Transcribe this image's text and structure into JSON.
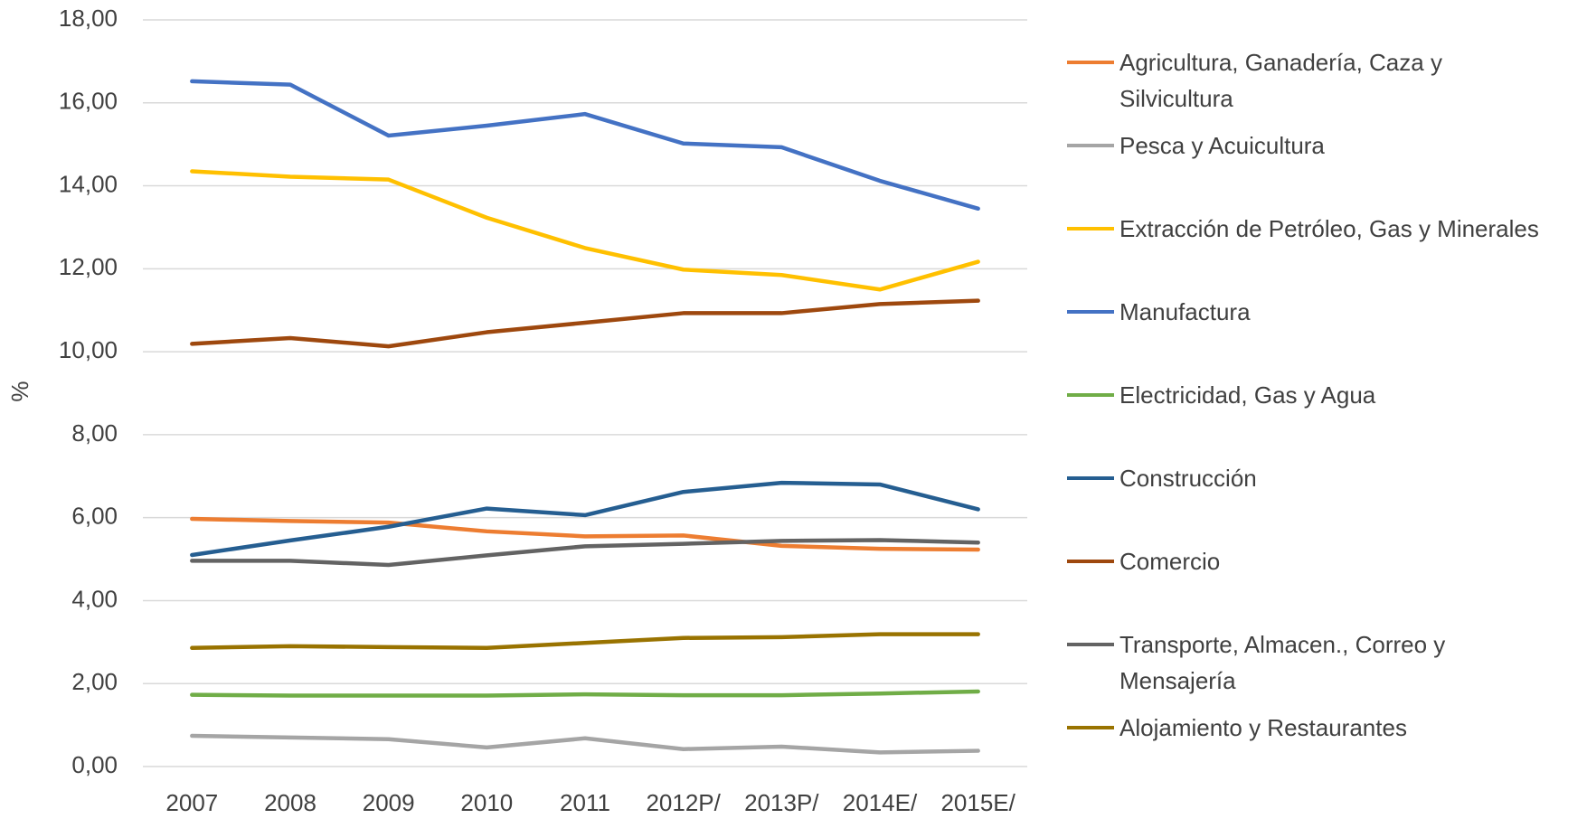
{
  "chart_data": {
    "type": "line",
    "ylabel": "%",
    "categories": [
      "2007",
      "2008",
      "2009",
      "2010",
      "2011",
      "2012P/",
      "2013P/",
      "2014E/",
      "2015E/"
    ],
    "ylim": [
      0,
      18
    ],
    "yticks": [
      {
        "value": 0,
        "label": "0,00"
      },
      {
        "value": 2,
        "label": "2,00"
      },
      {
        "value": 4,
        "label": "4,00"
      },
      {
        "value": 6,
        "label": "6,00"
      },
      {
        "value": 8,
        "label": "8,00"
      },
      {
        "value": 10,
        "label": "10,00"
      },
      {
        "value": 12,
        "label": "12,00"
      },
      {
        "value": 14,
        "label": "14,00"
      },
      {
        "value": 16,
        "label": "16,00"
      },
      {
        "value": 18,
        "label": "18,00"
      }
    ],
    "grid": true,
    "legend": "right",
    "series": [
      {
        "name": "Agricultura, Ganadería, Caza y\nSilvicultura",
        "color": "#ED7D31",
        "values": [
          5.97,
          5.92,
          5.88,
          5.67,
          5.55,
          5.57,
          5.32,
          5.25,
          5.23
        ]
      },
      {
        "name": "Pesca y Acuicultura",
        "color": "#A5A5A5",
        "values": [
          0.74,
          0.7,
          0.66,
          0.46,
          0.68,
          0.42,
          0.48,
          0.34,
          0.38
        ]
      },
      {
        "name": "Extracción de Petróleo, Gas y Minerales",
        "color": "#FFC000",
        "values": [
          14.35,
          14.22,
          14.15,
          13.23,
          12.5,
          11.98,
          11.85,
          11.5,
          12.17
        ]
      },
      {
        "name": "Manufactura",
        "color": "#4472C4",
        "values": [
          16.52,
          16.44,
          15.21,
          15.45,
          15.73,
          15.02,
          14.93,
          14.12,
          13.45
        ]
      },
      {
        "name": "Electricidad, Gas y Agua",
        "color": "#70AD47",
        "values": [
          1.73,
          1.71,
          1.71,
          1.71,
          1.74,
          1.72,
          1.72,
          1.76,
          1.81
        ]
      },
      {
        "name": "Construcción",
        "color": "#255E91",
        "values": [
          5.1,
          5.45,
          5.78,
          6.22,
          6.06,
          6.62,
          6.84,
          6.8,
          6.2
        ]
      },
      {
        "name": "Comercio",
        "color": "#9E480E",
        "values": [
          10.19,
          10.33,
          10.13,
          10.47,
          10.7,
          10.93,
          10.93,
          11.15,
          11.23
        ]
      },
      {
        "name": "Transporte, Almacen., Correo y\nMensajería",
        "color": "#636363",
        "values": [
          4.96,
          4.96,
          4.86,
          5.09,
          5.31,
          5.37,
          5.44,
          5.46,
          5.4
        ]
      },
      {
        "name": "Alojamiento y Restaurantes",
        "color": "#997300",
        "values": [
          2.86,
          2.9,
          2.88,
          2.86,
          2.98,
          3.1,
          3.12,
          3.19,
          3.19
        ]
      }
    ]
  }
}
